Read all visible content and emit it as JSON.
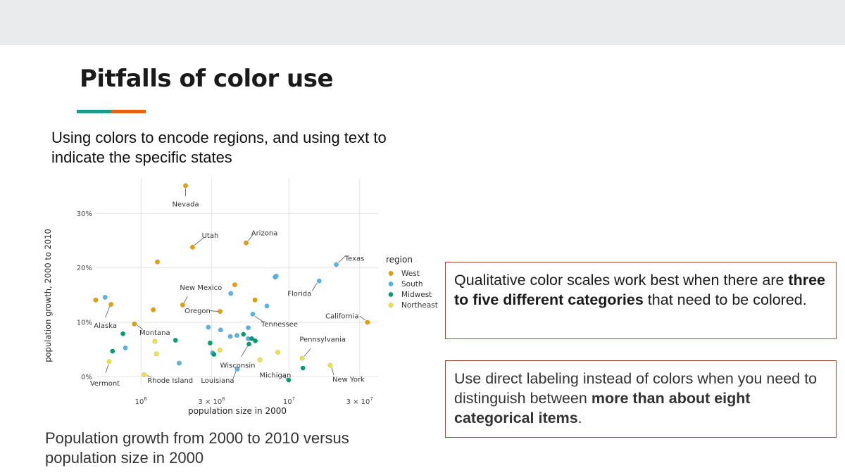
{
  "slide": {
    "title": "Pitfalls of color use",
    "intro": "Using colors to encode regions, and using text to indicate the specific states",
    "caption": "Population growth from 2000 to 2010 versus population size in 2000",
    "callout1": {
      "pre": "Qualitative color scales work best when there are ",
      "bold": "three to five different categories",
      "post": " that need to be colored."
    },
    "callout2": {
      "pre": "Use direct labeling instead of colors when you need to distinguish between ",
      "bold": "more than about eight categorical items",
      "post": "."
    },
    "colors": {
      "teal": "#1a9c8c",
      "orange": "#e8620f",
      "box_border": "#a0442c"
    }
  },
  "chart_data": {
    "type": "scatter",
    "xlabel": "population size in 2000",
    "ylabel": "population growth, 2000 to 2010",
    "x_scale": "log",
    "xlim": [
      500000,
      40000000
    ],
    "ylim": [
      -1.5,
      36.5
    ],
    "x_ticks": [
      {
        "value": 1000000,
        "base": "10",
        "exp": "6"
      },
      {
        "value": 3000000,
        "base": "3 × 10",
        "exp": "6"
      },
      {
        "value": 10000000,
        "base": "10",
        "exp": "7"
      },
      {
        "value": 30000000,
        "base": "3 × 10",
        "exp": "7"
      }
    ],
    "y_ticks": [
      {
        "value": 0,
        "label": "0%"
      },
      {
        "value": 10,
        "label": "10%"
      },
      {
        "value": 20,
        "label": "20%"
      },
      {
        "value": 30,
        "label": "30%"
      }
    ],
    "grid": true,
    "legend": {
      "title": "region",
      "position": "right",
      "items": [
        {
          "name": "West",
          "color": "#E69F00"
        },
        {
          "name": "South",
          "color": "#56B4E9"
        },
        {
          "name": "Midwest",
          "color": "#009E73"
        },
        {
          "name": "Northeast",
          "color": "#F0E442"
        }
      ]
    },
    "series": [
      {
        "name": "West",
        "color": "#E69F00",
        "points": [
          {
            "x": 2000000,
            "y": 35.1,
            "label": "Nevada"
          },
          {
            "x": 2230000,
            "y": 23.8,
            "label": "Utah"
          },
          {
            "x": 5130000,
            "y": 24.6,
            "label": "Arizona"
          },
          {
            "x": 33870000,
            "y": 10.0,
            "label": "California"
          },
          {
            "x": 627000,
            "y": 13.3,
            "label": "Alaska"
          },
          {
            "x": 902000,
            "y": 9.7,
            "label": "Montana"
          },
          {
            "x": 1910000,
            "y": 13.2,
            "label": "New Mexico"
          },
          {
            "x": 3420000,
            "y": 12.0,
            "label": "Oregon"
          },
          {
            "x": 4300000,
            "y": 16.9
          },
          {
            "x": 5890000,
            "y": 14.1
          },
          {
            "x": 1290000,
            "y": 21.1
          },
          {
            "x": 1210000,
            "y": 12.3
          },
          {
            "x": 494000,
            "y": 14.1
          }
        ]
      },
      {
        "name": "South",
        "color": "#56B4E9",
        "points": [
          {
            "x": 20850000,
            "y": 20.6,
            "label": "Texas"
          },
          {
            "x": 15980000,
            "y": 17.6,
            "label": "Florida"
          },
          {
            "x": 5690000,
            "y": 11.5,
            "label": "Tennessee"
          },
          {
            "x": 4470000,
            "y": 1.4,
            "label": "Louisiana"
          },
          {
            "x": 8050000,
            "y": 18.3
          },
          {
            "x": 8190000,
            "y": 18.5
          },
          {
            "x": 4040000,
            "y": 15.3
          },
          {
            "x": 7080000,
            "y": 13.0
          },
          {
            "x": 2850000,
            "y": 9.1
          },
          {
            "x": 3450000,
            "y": 8.6
          },
          {
            "x": 5300000,
            "y": 9.0
          },
          {
            "x": 4010000,
            "y": 7.4
          },
          {
            "x": 4450000,
            "y": 7.6
          },
          {
            "x": 5300000,
            "y": 7.0
          },
          {
            "x": 3040000,
            "y": 4.4
          },
          {
            "x": 1810000,
            "y": 2.5
          },
          {
            "x": 784000,
            "y": 5.3
          },
          {
            "x": 572000,
            "y": 14.6
          }
        ]
      },
      {
        "name": "Midwest",
        "color": "#009E73",
        "points": [
          {
            "x": 5360000,
            "y": 6.0,
            "label": "Wisconsin"
          },
          {
            "x": 9940000,
            "y": -0.6,
            "label": "Michigan"
          },
          {
            "x": 4920000,
            "y": 7.8
          },
          {
            "x": 5600000,
            "y": 7.0
          },
          {
            "x": 5920000,
            "y": 6.6
          },
          {
            "x": 2930000,
            "y": 6.2
          },
          {
            "x": 3110000,
            "y": 4.1
          },
          {
            "x": 1710000,
            "y": 6.7
          },
          {
            "x": 12420000,
            "y": 1.6
          },
          {
            "x": 642000,
            "y": 4.7
          },
          {
            "x": 755000,
            "y": 7.9
          }
        ]
      },
      {
        "name": "Northeast",
        "color": "#F0E442",
        "points": [
          {
            "x": 12280000,
            "y": 3.4,
            "label": "Pennsylvania"
          },
          {
            "x": 18980000,
            "y": 2.1,
            "label": "New York"
          },
          {
            "x": 1050000,
            "y": 0.4,
            "label": "Rhode Island"
          },
          {
            "x": 609000,
            "y": 2.8,
            "label": "Vermont"
          },
          {
            "x": 8410000,
            "y": 4.5
          },
          {
            "x": 6350000,
            "y": 3.1
          },
          {
            "x": 3410000,
            "y": 4.9
          },
          {
            "x": 1240000,
            "y": 6.5
          },
          {
            "x": 1270000,
            "y": 4.2
          }
        ]
      }
    ]
  }
}
